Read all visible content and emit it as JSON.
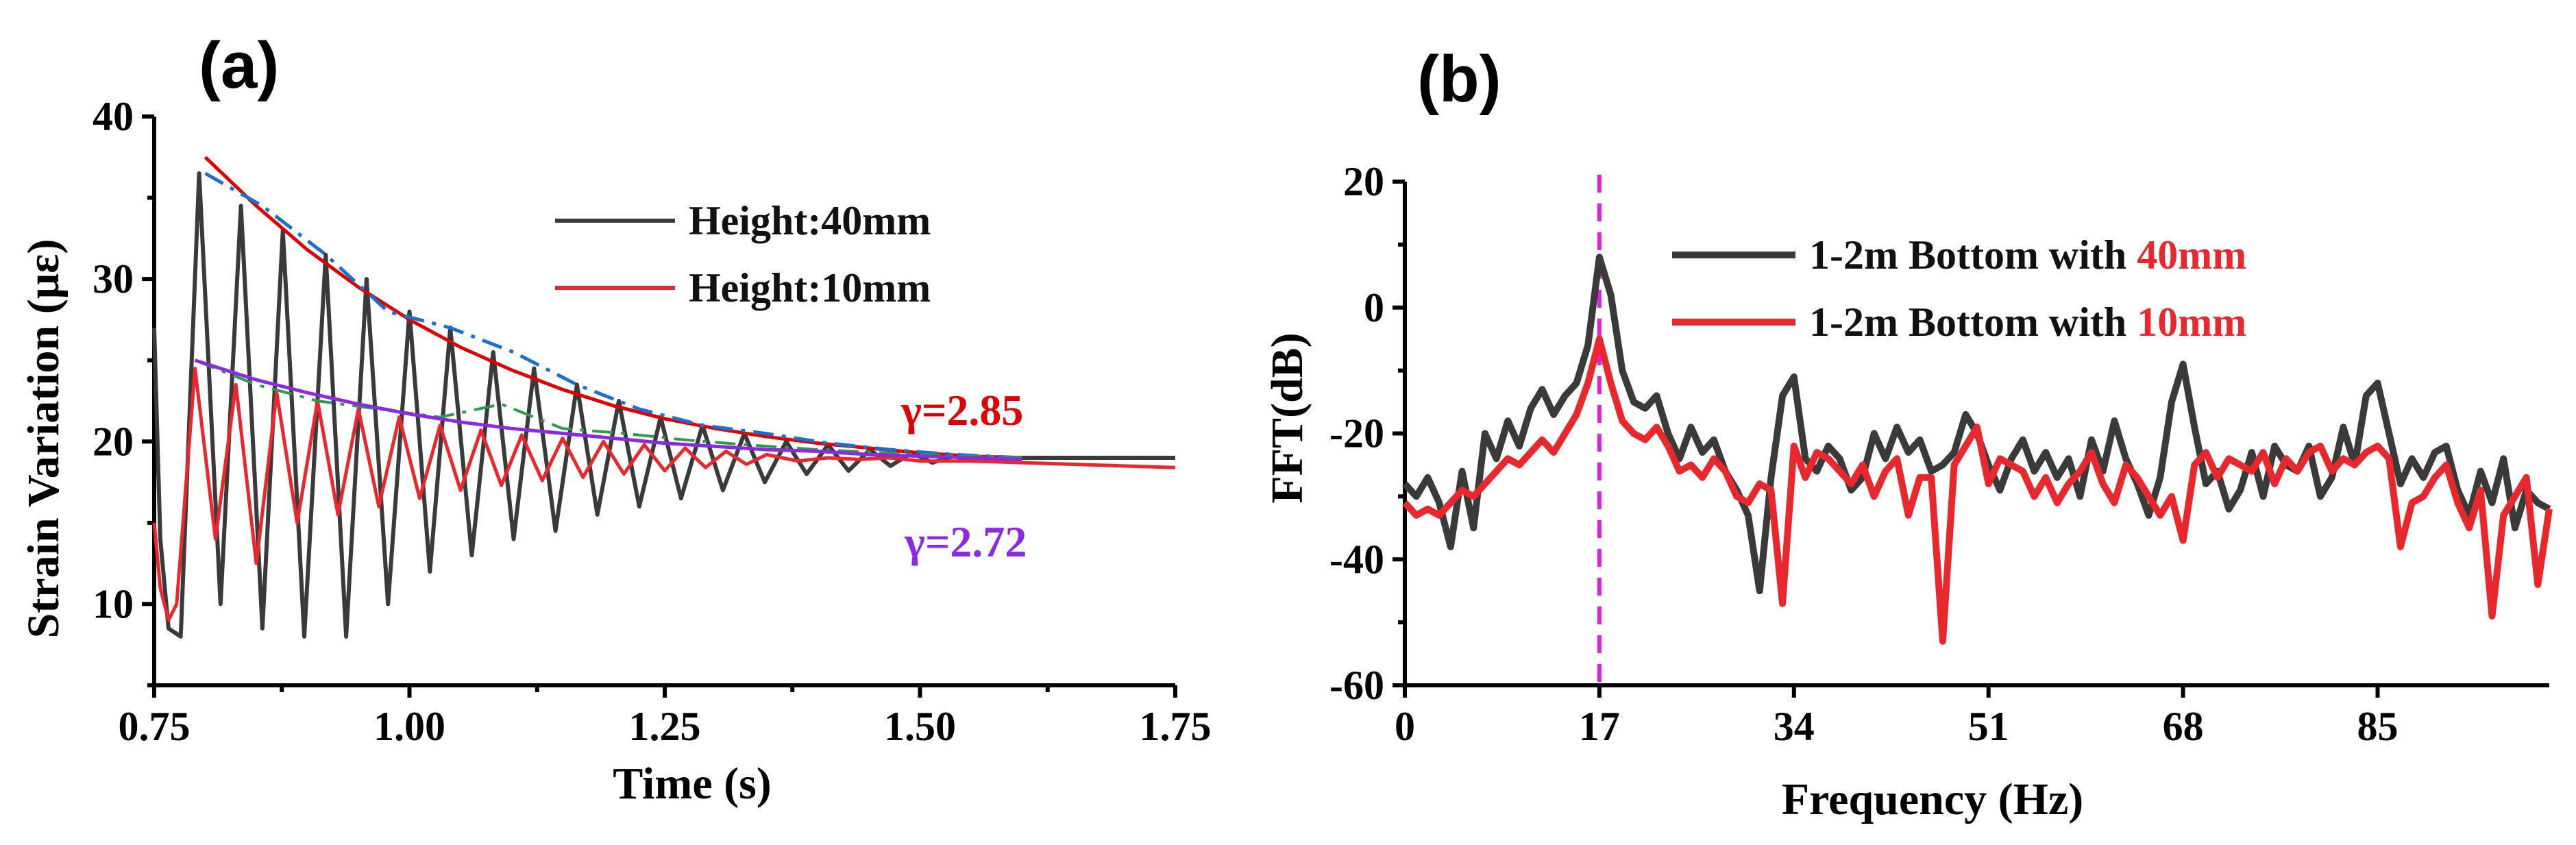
{
  "chart_data": [
    {
      "panel": "(a)",
      "type": "line",
      "xlabel": "Time (s)",
      "ylabel": "Strain Variation (με)",
      "xlim": [
        0.75,
        1.75
      ],
      "ylim": [
        5,
        40
      ],
      "xticks": [
        0.75,
        1.0,
        1.25,
        1.5,
        1.75
      ],
      "xtick_labels": [
        "0.75",
        "1.00",
        "1.25",
        "1.50",
        "1.75"
      ],
      "yticks": [
        10,
        20,
        30,
        40
      ],
      "ytick_labels": [
        "10",
        "20",
        "30",
        "40"
      ],
      "legend": [
        {
          "label": "Height:40mm",
          "color": "#3a3a3a"
        },
        {
          "label": "Height:10mm",
          "color": "#e8282c"
        }
      ],
      "annotations": [
        {
          "text": "γ=2.85",
          "color": "#e00000"
        },
        {
          "text": "γ=2.72",
          "color": "#8a2be2"
        }
      ],
      "series": [
        {
          "name": "Height:40mm",
          "color": "#3a3a3a",
          "x": [
            0.75,
            0.756,
            0.764,
            0.776,
            0.794,
            0.815,
            0.835,
            0.856,
            0.876,
            0.897,
            0.918,
            0.938,
            0.958,
            0.979,
            1.0,
            1.02,
            1.04,
            1.061,
            1.082,
            1.102,
            1.122,
            1.143,
            1.164,
            1.184,
            1.205,
            1.225,
            1.246,
            1.266,
            1.287,
            1.307,
            1.328,
            1.348,
            1.369,
            1.389,
            1.41,
            1.43,
            1.451,
            1.471,
            1.492,
            1.512,
            1.533,
            1.553,
            1.574,
            1.6,
            1.63,
            1.68,
            1.75
          ],
          "y": [
            27,
            14,
            8.5,
            8,
            36.5,
            10,
            34.5,
            8.5,
            33,
            8,
            31.5,
            8,
            30,
            10,
            28,
            12,
            27,
            13,
            25.5,
            14,
            24.5,
            14.5,
            23.5,
            15.5,
            22.5,
            16,
            21.5,
            16.5,
            21,
            17,
            20.5,
            17.5,
            20,
            18,
            19.8,
            18.2,
            19.5,
            18.5,
            19.3,
            18.7,
            19.1,
            18.8,
            19,
            19,
            19,
            19,
            19
          ]
        },
        {
          "name": "Height:10mm",
          "color": "#e8282c",
          "x": [
            0.75,
            0.756,
            0.764,
            0.772,
            0.79,
            0.81,
            0.83,
            0.85,
            0.87,
            0.89,
            0.91,
            0.93,
            0.95,
            0.97,
            0.99,
            1.01,
            1.03,
            1.05,
            1.07,
            1.09,
            1.11,
            1.13,
            1.15,
            1.17,
            1.19,
            1.21,
            1.23,
            1.25,
            1.27,
            1.29,
            1.31,
            1.33,
            1.35,
            1.38,
            1.41,
            1.44,
            1.47,
            1.5,
            1.55,
            1.6,
            1.65,
            1.7,
            1.75
          ],
          "y": [
            15,
            11,
            9,
            10,
            24.5,
            14,
            23.5,
            12.5,
            23,
            15,
            22.5,
            15.5,
            22,
            16,
            21.5,
            16.5,
            21,
            17,
            20.7,
            17.3,
            20.4,
            17.6,
            20.2,
            17.8,
            20,
            18,
            19.8,
            18.2,
            19.6,
            18.4,
            19.4,
            18.6,
            19.2,
            18.8,
            19,
            18.9,
            19,
            18.8,
            18.8,
            18.7,
            18.6,
            18.5,
            18.4
          ]
        },
        {
          "name": "upper envelope fit (γ=2.85)",
          "color": "#e00000",
          "x": [
            0.8,
            0.85,
            0.9,
            0.95,
            1.0,
            1.05,
            1.1,
            1.15,
            1.2,
            1.25,
            1.3,
            1.35,
            1.4,
            1.45,
            1.5,
            1.55,
            1.6
          ],
          "y": [
            37.5,
            34.5,
            31.8,
            29.5,
            27.5,
            25.8,
            24.4,
            23.2,
            22.2,
            21.4,
            20.8,
            20.3,
            19.9,
            19.6,
            19.3,
            19.1,
            19.0
          ]
        },
        {
          "name": "upper envelope (dash-dot)",
          "color": "#1a6fd0",
          "x": [
            0.8,
            0.856,
            0.918,
            0.979,
            1.04,
            1.102,
            1.164,
            1.225,
            1.287,
            1.348,
            1.41,
            1.471,
            1.533,
            1.6
          ],
          "y": [
            36.5,
            34.5,
            31.5,
            28,
            27,
            25.5,
            23.5,
            22,
            21,
            20.5,
            19.9,
            19.5,
            19.2,
            19.0
          ]
        },
        {
          "name": "10mm envelope (dash-dot)",
          "color": "#2e9a4a",
          "x": [
            0.79,
            0.85,
            0.91,
            0.97,
            1.03,
            1.09,
            1.15,
            1.21,
            1.27,
            1.33,
            1.4,
            1.5,
            1.6
          ],
          "y": [
            25,
            23.5,
            22.5,
            22,
            21.5,
            22.3,
            20.8,
            20.5,
            20.1,
            19.8,
            19.5,
            19.2,
            19.0
          ]
        },
        {
          "name": "10mm envelope fit (γ=2.72)",
          "color": "#8a2be2",
          "x": [
            0.79,
            0.85,
            0.9,
            0.95,
            1.0,
            1.05,
            1.1,
            1.15,
            1.2,
            1.25,
            1.3,
            1.35,
            1.4,
            1.45,
            1.5,
            1.55,
            1.6
          ],
          "y": [
            25,
            23.8,
            23.0,
            22.3,
            21.7,
            21.2,
            20.8,
            20.5,
            20.2,
            19.9,
            19.7,
            19.5,
            19.4,
            19.2,
            19.1,
            19.0,
            18.9
          ]
        }
      ]
    },
    {
      "panel": "(b)",
      "type": "line",
      "xlabel": "Frequency (Hz)",
      "ylabel": "FFT(dB)",
      "xlim": [
        0,
        100
      ],
      "ylim": [
        -60,
        20
      ],
      "xticks": [
        0,
        17,
        34,
        51,
        68,
        85
      ],
      "xtick_labels": [
        "0",
        "17",
        "34",
        "51",
        "68",
        "85"
      ],
      "yticks": [
        -60,
        -40,
        -20,
        0,
        20
      ],
      "ytick_labels": [
        "-60",
        "-40",
        "-20",
        "0",
        "20"
      ],
      "marker_line_x": 17,
      "marker_line_color": "#e020e0",
      "legend": [
        {
          "label_prefix": "1-2m Bottom with ",
          "label_highlight": "40mm",
          "color": "#3a3a3a"
        },
        {
          "label_prefix": "1-2m Bottom with ",
          "label_highlight": "10mm",
          "color": "#e8282c"
        }
      ],
      "series": [
        {
          "name": "1-2m Bottom with 40mm",
          "color": "#3a3a3a",
          "x": [
            0,
            1,
            2,
            3,
            4,
            5,
            6,
            7,
            8,
            9,
            10,
            11,
            12,
            13,
            14,
            15,
            16,
            17,
            18,
            19,
            20,
            21,
            22,
            23,
            24,
            25,
            26,
            27,
            28,
            29,
            30,
            31,
            32,
            33,
            34,
            35,
            36,
            37,
            38,
            39,
            40,
            41,
            42,
            43,
            44,
            45,
            46,
            47,
            48,
            49,
            50,
            51,
            52,
            53,
            54,
            55,
            56,
            57,
            58,
            59,
            60,
            61,
            62,
            63,
            64,
            65,
            66,
            67,
            68,
            69,
            70,
            71,
            72,
            73,
            74,
            75,
            76,
            77,
            78,
            79,
            80,
            81,
            82,
            83,
            84,
            85,
            86,
            87,
            88,
            89,
            90,
            91,
            92,
            93,
            94,
            95,
            96,
            97,
            98,
            99,
            100
          ],
          "y": [
            -28,
            -30,
            -27,
            -31,
            -38,
            -26,
            -35,
            -20,
            -24,
            -18,
            -22,
            -16,
            -13,
            -17,
            -14,
            -12,
            -6,
            8,
            2,
            -10,
            -15,
            -16,
            -14,
            -20,
            -24,
            -19,
            -23,
            -21,
            -26,
            -29,
            -33,
            -45,
            -27,
            -14,
            -11,
            -24,
            -26,
            -22,
            -24,
            -29,
            -27,
            -20,
            -24,
            -19,
            -23,
            -21,
            -26,
            -25,
            -23,
            -17,
            -20,
            -25,
            -29,
            -24,
            -21,
            -26,
            -23,
            -27,
            -24,
            -30,
            -21,
            -26,
            -18,
            -24,
            -28,
            -33,
            -27,
            -15,
            -9,
            -19,
            -28,
            -26,
            -32,
            -29,
            -23,
            -30,
            -22,
            -25,
            -26,
            -22,
            -30,
            -27,
            -19,
            -25,
            -14,
            -12,
            -20,
            -28,
            -24,
            -27,
            -23,
            -22,
            -29,
            -33,
            -26,
            -31,
            -24,
            -35,
            -29,
            -31,
            -32
          ]
        },
        {
          "name": "1-2m Bottom with 10mm",
          "color": "#e8282c",
          "x": [
            0,
            1,
            2,
            3,
            4,
            5,
            6,
            7,
            8,
            9,
            10,
            11,
            12,
            13,
            14,
            15,
            16,
            17,
            18,
            19,
            20,
            21,
            22,
            23,
            24,
            25,
            26,
            27,
            28,
            29,
            30,
            31,
            32,
            33,
            34,
            35,
            36,
            37,
            38,
            39,
            40,
            41,
            42,
            43,
            44,
            45,
            46,
            47,
            48,
            49,
            50,
            51,
            52,
            53,
            54,
            55,
            56,
            57,
            58,
            59,
            60,
            61,
            62,
            63,
            64,
            65,
            66,
            67,
            68,
            69,
            70,
            71,
            72,
            73,
            74,
            75,
            76,
            77,
            78,
            79,
            80,
            81,
            82,
            83,
            84,
            85,
            86,
            87,
            88,
            89,
            90,
            91,
            92,
            93,
            94,
            95,
            96,
            97,
            98,
            99,
            100
          ],
          "y": [
            -31,
            -33,
            -32,
            -33,
            -31,
            -29,
            -30,
            -28,
            -26,
            -24,
            -25,
            -23,
            -21,
            -23,
            -20,
            -17,
            -12,
            -5,
            -12,
            -18,
            -20,
            -21,
            -19,
            -22,
            -26,
            -25,
            -27,
            -24,
            -26,
            -30,
            -31,
            -28,
            -29,
            -47,
            -22,
            -27,
            -23,
            -24,
            -26,
            -28,
            -25,
            -30,
            -26,
            -24,
            -33,
            -27,
            -27,
            -53,
            -25,
            -22,
            -19,
            -28,
            -24,
            -25,
            -26,
            -30,
            -27,
            -31,
            -28,
            -26,
            -23,
            -28,
            -31,
            -25,
            -27,
            -30,
            -33,
            -30,
            -37,
            -25,
            -23,
            -27,
            -24,
            -25,
            -26,
            -23,
            -28,
            -24,
            -26,
            -23,
            -22,
            -26,
            -24,
            -25,
            -23,
            -22,
            -24,
            -38,
            -31,
            -30,
            -27,
            -25,
            -31,
            -35,
            -29,
            -49,
            -33,
            -30,
            -27,
            -44,
            -32
          ]
        }
      ]
    }
  ]
}
